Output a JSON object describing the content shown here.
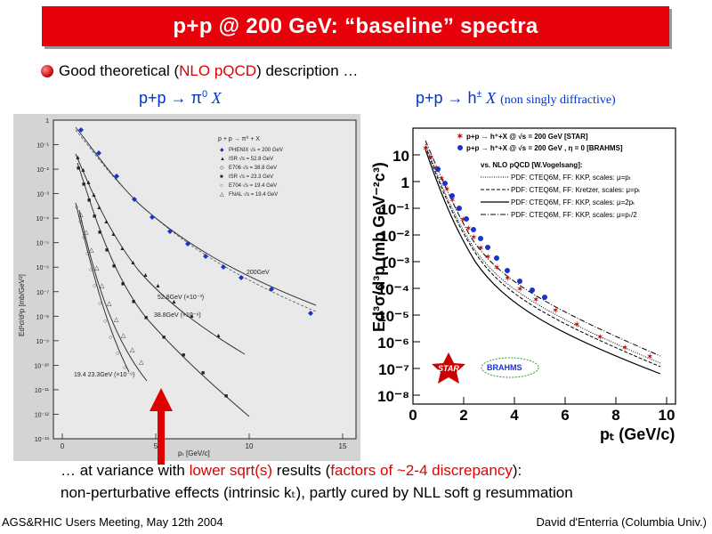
{
  "title": "p+p @ 200 GeV: “baseline” spectra",
  "line1": {
    "before": "Good theoretical (",
    "highlight": "NLO pQCD",
    "after": ") description …"
  },
  "left_panel": {
    "subtitle_a": "p+p → π",
    "subtitle_sup": "0",
    "subtitle_b": " X",
    "legend_header": "p + p → π⁰ + X",
    "legend": [
      "PHENIX  √s = 200 GeV",
      "ISR     √s = 52.8 GeV",
      "E706    √s = 38.8 GeV",
      "ISR     √s = 23.3 GeV",
      "E704    √s = 19.4 GeV",
      "FNAL    √s = 19.4 GeV"
    ],
    "curve_labels": [
      "200GeV",
      "52.8GeV (×10⁻³)",
      "38.8GeV (×10⁻⁶)",
      "19.4  23.3GeV (×10⁻⁹)"
    ],
    "x_ticks": [
      "0",
      "5",
      "10",
      "15"
    ],
    "y_ticks": [
      "1",
      "10⁻¹",
      "10⁻²",
      "10⁻³",
      "10⁻⁴",
      "10⁻⁵",
      "10⁻⁶",
      "10⁻⁷",
      "10⁻⁸",
      "10⁻⁹",
      "10⁻¹⁰",
      "10⁻¹¹",
      "10⁻¹²",
      "10⁻¹³"
    ],
    "xlabel": "pₜ [GeV/c]",
    "ylabel": "Ed³σ/d³p [mb/GeV²]"
  },
  "right_panel": {
    "subtitle_a": "p+p → h",
    "subtitle_sup": "±",
    "subtitle_b": " X",
    "subtitle_note": "(non singly diffractive)",
    "legend": [
      "p+p → h⁺+X @ √s = 200 GeV [STAR]",
      "p+p → h⁺+X @ √s = 200 GeV , η = 0 [BRAHMS]",
      "vs. NLO pQCD [W.Vogelsang]:",
      "PDF: CTEQ6M, FF: KKP, scales: μ=pₜ",
      "PDF: CTEQ6M, FF: Kretzer, scales: μ=pₜ",
      "PDF: CTEQ6M, FF: KKP, scales: μ=2pₜ",
      "PDF: CTEQ6M, FF: KKP, scales: μ=pₜ/2"
    ],
    "x_ticks": [
      "0",
      "2",
      "4",
      "6",
      "8",
      "10"
    ],
    "y_ticks": [
      "10",
      "1",
      "10⁻¹",
      "10⁻²",
      "10⁻³",
      "10⁻⁴",
      "10⁻⁵",
      "10⁻⁶",
      "10⁻⁷",
      "10⁻⁸"
    ],
    "xlabel": "pₜ (GeV/c)",
    "ylabel": "Ed³σ/d³p (mb GeV⁻²c³)",
    "logo_star": "STAR",
    "logo_brahms": "BRAHMS"
  },
  "bottom": {
    "line1_before": "… at variance with ",
    "line1_red1": "lower sqrt(s)",
    "line1_mid": " results (",
    "line1_red2": "factors of ~2-4 discrepancy",
    "line1_after": "):",
    "line2": "non-perturbative effects (intrinsic kₜ), partly cured by NLL soft g resummation"
  },
  "footer": {
    "left": "AGS&RHIC Users Meeting, May 12th 2004",
    "right": "David d'Enterria (Columbia Univ.)"
  },
  "colors": {
    "title_bg": "#e8000b",
    "accent_red": "#e00000",
    "subtitle_blue": "#0033cc",
    "phenix_blue": "#1a33cc"
  }
}
